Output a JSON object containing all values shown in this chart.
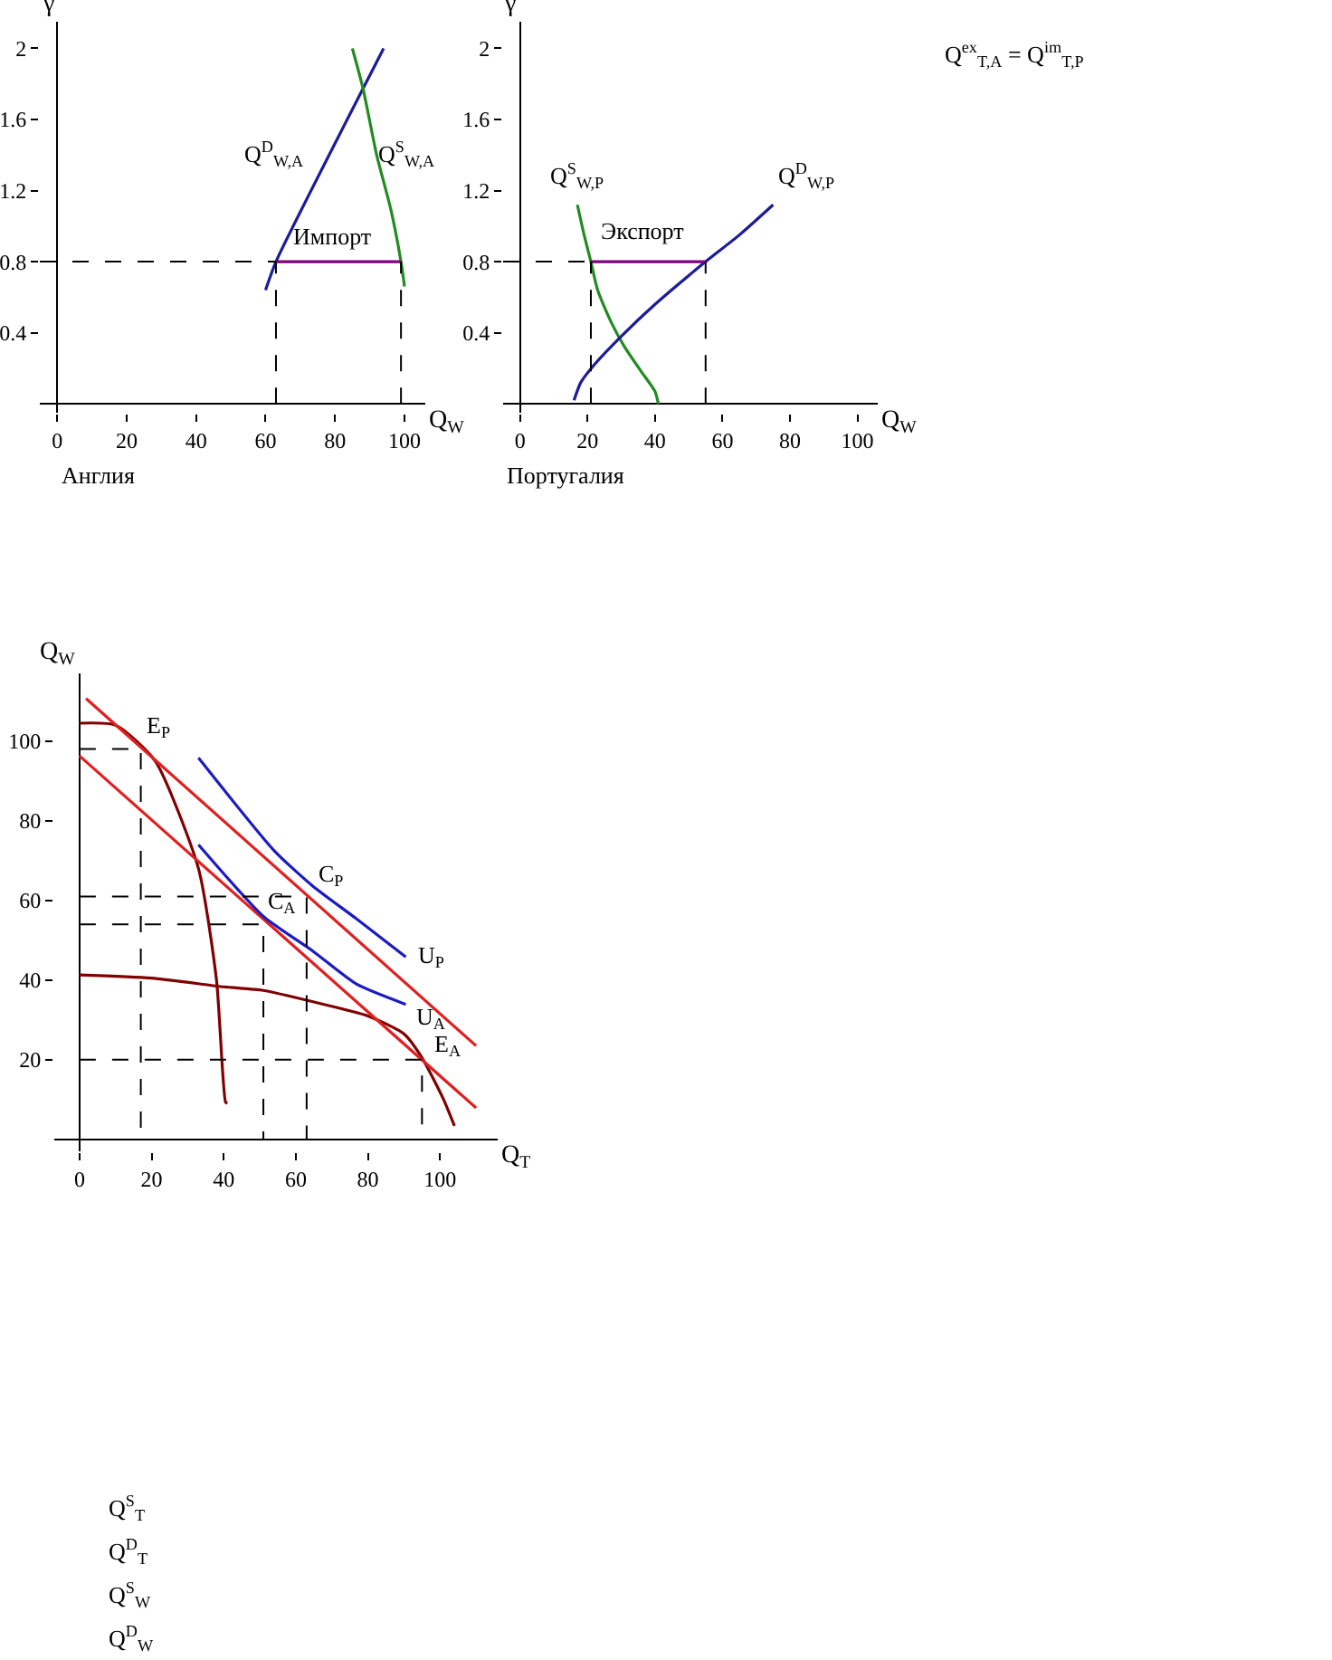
{
  "chart_data": [
    {
      "type": "line",
      "xlabel": "Q$_{W}$",
      "ylabel": "γ",
      "xlim": [
        -5,
        106
      ],
      "ylim": [
        -0.05,
        2.15
      ],
      "xticks": [
        0,
        20,
        40,
        60,
        80,
        100
      ],
      "yticks": [
        0.4,
        0.8,
        1.2,
        1.6,
        2
      ],
      "legend": false,
      "marker": "none",
      "series": [
        {
          "color": "#1c1c9a",
          "x": [
            60,
            63,
            94
          ],
          "values": [
            0.64,
            0.8,
            2.0
          ]
        },
        {
          "color": "#228b22",
          "x": [
            85,
            88,
            92,
            96,
            99,
            100
          ],
          "values": [
            2.0,
            1.78,
            1.4,
            1.1,
            0.8,
            0.66
          ]
        },
        {
          "color": "#800080",
          "x": [
            63,
            99
          ],
          "values": [
            0.8,
            0.8
          ]
        },
        {
          "color": "#000000",
          "line_style": "dashed",
          "x": [
            -5,
            63
          ],
          "values": [
            0.8,
            0.8
          ]
        },
        {
          "color": "#000000",
          "line_style": "dashed",
          "x": [
            63,
            63
          ],
          "values": [
            0,
            0.8
          ]
        },
        {
          "color": "#000000",
          "line_style": "dashed",
          "x": [
            99,
            99
          ],
          "values": [
            0,
            0.8
          ]
        }
      ],
      "annotations": [
        "Q$^{D}$$_{W,A}$",
        "Q$^{S}$$_{W,A}$",
        "Импорт",
        "Англия"
      ]
    },
    {
      "type": "line",
      "xlabel": "Q$_{W}$",
      "ylabel": "γ",
      "xlim": [
        -5,
        106
      ],
      "ylim": [
        -0.05,
        2.15
      ],
      "xticks": [
        0,
        20,
        40,
        60,
        80,
        100
      ],
      "yticks": [
        0.4,
        0.8,
        1.2,
        1.6,
        2
      ],
      "legend": false,
      "marker": "none",
      "series": [
        {
          "color": "#228b22",
          "x": [
            17,
            19,
            21,
            23,
            27,
            31,
            36,
            40,
            41
          ],
          "values": [
            1.12,
            0.95,
            0.8,
            0.64,
            0.46,
            0.32,
            0.18,
            0.07,
            0
          ]
        },
        {
          "color": "#1c1c9a",
          "x": [
            16,
            18,
            22,
            30,
            40,
            55,
            65,
            75
          ],
          "values": [
            0.02,
            0.12,
            0.22,
            0.38,
            0.56,
            0.8,
            0.95,
            1.12
          ]
        },
        {
          "color": "#800080",
          "x": [
            21,
            55
          ],
          "values": [
            0.8,
            0.8
          ]
        },
        {
          "color": "#000000",
          "line_style": "dashed",
          "x": [
            -5,
            21
          ],
          "values": [
            0.8,
            0.8
          ]
        },
        {
          "color": "#000000",
          "line_style": "dashed",
          "x": [
            21,
            21
          ],
          "values": [
            0,
            0.8
          ]
        },
        {
          "color": "#000000",
          "line_style": "dashed",
          "x": [
            55,
            55
          ],
          "values": [
            0,
            0.8
          ]
        }
      ],
      "annotations": [
        "Q$^{S}$$_{W,P}$",
        "Q$^{D}$$_{W,P}$",
        "Экспорт",
        "Португалия",
        "Q$^{ex}$$_{T,A}$ = Q$^{im}$$_{T,P}$"
      ]
    },
    {
      "type": "line",
      "xlabel": "Q$_{T}$",
      "ylabel": "Q$_{W}$",
      "xlim": [
        -7,
        116
      ],
      "ylim": [
        -3,
        117
      ],
      "xticks": [
        0,
        20,
        40,
        60,
        80,
        100
      ],
      "yticks": [
        20,
        40,
        60,
        80,
        100
      ],
      "legend": false,
      "marker": "none",
      "series": [
        {
          "color": "#800000",
          "x": [
            0,
            10,
            21,
            33,
            38,
            40.5,
            41
          ],
          "values": [
            104.5,
            104,
            95,
            68,
            40,
            9.4,
            9
          ]
        },
        {
          "color": "#800000",
          "x": [
            0,
            20,
            40,
            51,
            65,
            80,
            90,
            95,
            101,
            104
          ],
          "values": [
            41.3,
            40.5,
            38.3,
            37.4,
            34.5,
            31,
            26.5,
            20.5,
            10,
            3.4
          ]
        },
        {
          "color": "#e02020",
          "x": [
            1.8,
            110
          ],
          "values": [
            110.7,
            23.5
          ]
        },
        {
          "color": "#e02020",
          "x": [
            0,
            110
          ],
          "values": [
            96.3,
            7.9
          ]
        },
        {
          "color": "#1c1cc0",
          "x": [
            33,
            54,
            64.7,
            76.8,
            90.5
          ],
          "values": [
            95.8,
            72.5,
            63.6,
            55.4,
            45.8
          ]
        },
        {
          "color": "#1c1cc0",
          "x": [
            33,
            51,
            64.7,
            76.8,
            90.5
          ],
          "values": [
            74,
            56,
            47.3,
            39,
            33.9
          ]
        },
        {
          "color": "#000000",
          "line_style": "dashed",
          "x": [
            0,
            17,
            17
          ],
          "values": [
            98,
            98,
            0
          ]
        },
        {
          "color": "#000000",
          "line_style": "dashed",
          "x": [
            0,
            63,
            63
          ],
          "values": [
            61,
            61,
            0
          ]
        },
        {
          "color": "#000000",
          "line_style": "dashed",
          "x": [
            0,
            51,
            51
          ],
          "values": [
            54,
            54,
            0
          ]
        },
        {
          "color": "#000000",
          "line_style": "dashed",
          "x": [
            0,
            95,
            95
          ],
          "values": [
            20,
            20,
            0
          ]
        }
      ],
      "annotations": [
        {
          "text": "E$_{P}$",
          "x": 17,
          "y": 98
        },
        {
          "text": "C$_{P}$",
          "x": 63,
          "y": 61
        },
        {
          "text": "C$_{A}$",
          "x": 51,
          "y": 54
        },
        {
          "text": "E$_{A}$",
          "x": 95,
          "y": 20
        },
        {
          "text": "U$_{P}$",
          "x": 90.5,
          "y": 45.8
        },
        {
          "text": "U$_{A}$",
          "x": 90.5,
          "y": 33.9
        },
        "Q$^{S}$$_{T}$",
        "Q$^{D}$$_{T}$",
        "Q$^{S}$$_{W}$",
        "Q$^{D}$$_{W}$"
      ]
    }
  ]
}
